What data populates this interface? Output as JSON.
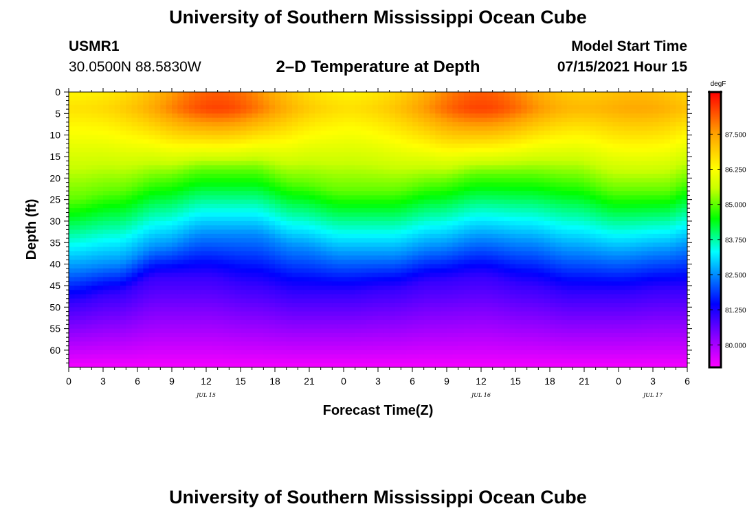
{
  "header": {
    "title": "University of Southern Mississippi Ocean Cube",
    "station": "USMR1",
    "latlon": "30.0500N  88.5830W",
    "subtitle": "2–D Temperature at Depth",
    "model_start_label": "Model Start Time",
    "model_start_value": "07/15/2021 Hour 15"
  },
  "footer": {
    "title": "University of Southern Mississippi Ocean Cube"
  },
  "chart_data": {
    "type": "heatmap",
    "title": "2–D Temperature at Depth",
    "xlabel": "Forecast Time(Z)",
    "ylabel": "Depth (ft)",
    "x_tick_labels": [
      "0",
      "3",
      "6",
      "9",
      "12",
      "15",
      "18",
      "21",
      "0",
      "3",
      "6",
      "9",
      "12",
      "15",
      "18",
      "21",
      "0",
      "3",
      "6"
    ],
    "x_range_hours": [
      0,
      54
    ],
    "date_labels": [
      {
        "label": "JUL 15",
        "hour": 12
      },
      {
        "label": "JUL 16",
        "hour": 36
      },
      {
        "label": "JUL 17",
        "hour": 51
      }
    ],
    "y_tick_labels": [
      "0",
      "5",
      "10",
      "15",
      "20",
      "25",
      "30",
      "35",
      "40",
      "45",
      "50",
      "55",
      "60"
    ],
    "y_range_ft": [
      0,
      64
    ],
    "y_inverted": true,
    "colorbar": {
      "units": "degF",
      "range": [
        79.2,
        89.0
      ],
      "tick_labels": [
        "87.500",
        "86.250",
        "85.000",
        "83.750",
        "82.500",
        "81.250",
        "80.000"
      ],
      "tick_values": [
        87.5,
        86.25,
        85.0,
        83.75,
        82.5,
        81.25,
        80.0
      ],
      "colors": [
        "#ff00ff",
        "#8a00ff",
        "#0000ff",
        "#0090ff",
        "#00ffff",
        "#00ff00",
        "#c8ff00",
        "#ffff00",
        "#ffa000",
        "#ff0000"
      ]
    },
    "isotherm_samples": {
      "hours": [
        0,
        4,
        8,
        12,
        16,
        20,
        24,
        28,
        32,
        36,
        40,
        44,
        48,
        52,
        54
      ],
      "depth_82_5F_ft": [
        41,
        40,
        36,
        33,
        33,
        36,
        38,
        38,
        36,
        34,
        35,
        37,
        38,
        37,
        36
      ],
      "depth_85F_ft": [
        25,
        23,
        20,
        18,
        18,
        21,
        23,
        23,
        21,
        19,
        19,
        20,
        23,
        23,
        21
      ],
      "depth_81F_ft": [
        49,
        47,
        43,
        43,
        45,
        47,
        47,
        46,
        44,
        43,
        45,
        47,
        47,
        46,
        46
      ]
    },
    "surface_max_note": "warmest near surface around hours 10-16 and 33-38 (~88.5 degF)",
    "bottom_min_note": "coolest at depth ~63 ft (~79.3 degF)"
  }
}
